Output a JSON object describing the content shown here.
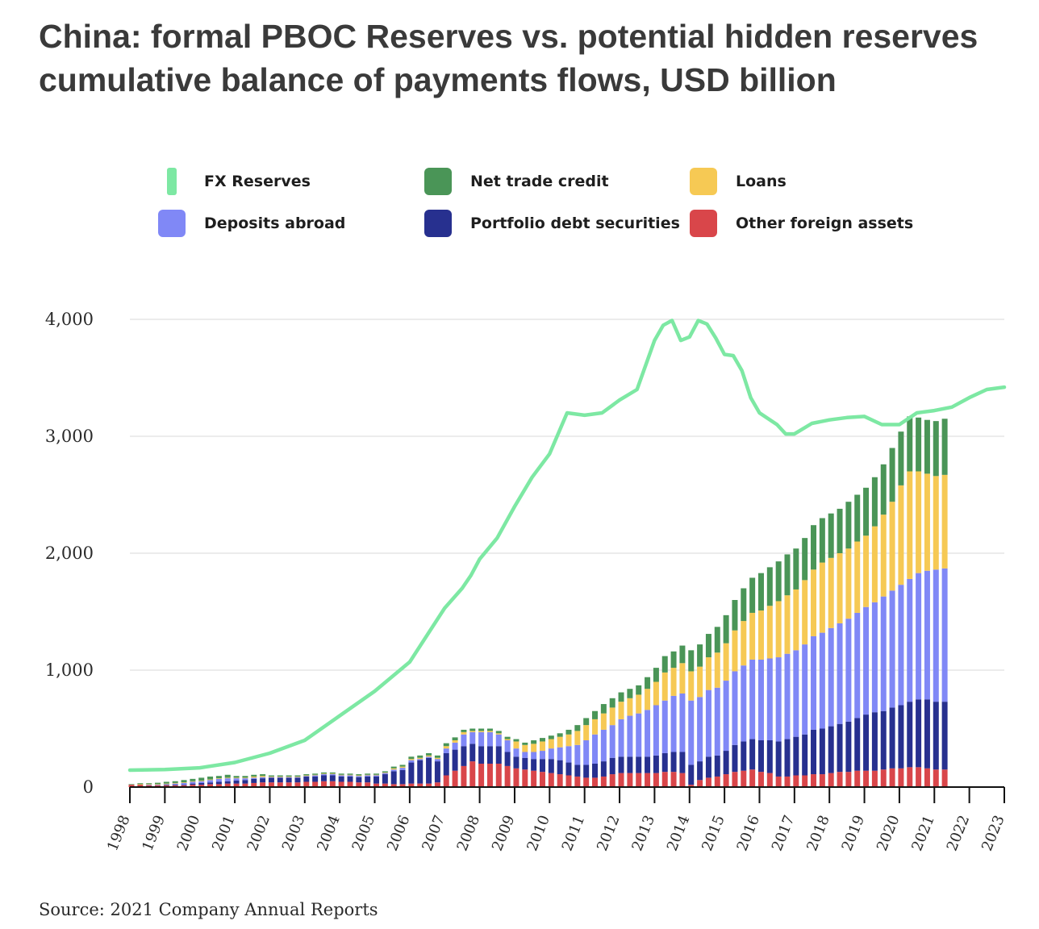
{
  "chart_data": {
    "type": "bar",
    "title": "China: formal PBOC Reserves vs. potential hidden reserves cumulative balance of payments flows, USD billion",
    "source": "Source: 2021 Company Annual Reports",
    "ylim": [
      0,
      4000
    ],
    "yticks": [
      "0",
      "1,000",
      "2,000",
      "3,000",
      "4,000"
    ],
    "ytick_values": [
      0,
      1000,
      2000,
      3000,
      4000
    ],
    "xticks": [
      "1998",
      "1999",
      "2000",
      "2001",
      "2002",
      "2003",
      "2004",
      "2005",
      "2006",
      "2007",
      "2008",
      "2009",
      "2010",
      "2011",
      "2012",
      "2013",
      "2014",
      "2015",
      "2016",
      "2017",
      "2018",
      "2019",
      "2020",
      "2021",
      "2022",
      "2023"
    ],
    "grid": true,
    "legend_position": "top",
    "line_series": {
      "name": "FX Reserves",
      "color": "#7de8a3",
      "points": [
        [
          1998.0,
          145
        ],
        [
          1999.0,
          150
        ],
        [
          2000.0,
          165
        ],
        [
          2001.0,
          210
        ],
        [
          2002.0,
          290
        ],
        [
          2003.0,
          400
        ],
        [
          2004.0,
          610
        ],
        [
          2005.0,
          820
        ],
        [
          2006.0,
          1070
        ],
        [
          2007.0,
          1530
        ],
        [
          2007.5,
          1700
        ],
        [
          2007.75,
          1810
        ],
        [
          2008.0,
          1950
        ],
        [
          2008.5,
          2130
        ],
        [
          2009.0,
          2400
        ],
        [
          2009.5,
          2650
        ],
        [
          2010.0,
          2850
        ],
        [
          2010.5,
          3200
        ],
        [
          2011.0,
          3180
        ],
        [
          2011.5,
          3200
        ],
        [
          2012.0,
          3310
        ],
        [
          2012.5,
          3400
        ],
        [
          2013.0,
          3820
        ],
        [
          2013.25,
          3950
        ],
        [
          2013.5,
          3990
        ],
        [
          2013.75,
          3820
        ],
        [
          2014.0,
          3850
        ],
        [
          2014.25,
          3990
        ],
        [
          2014.5,
          3960
        ],
        [
          2014.75,
          3840
        ],
        [
          2015.0,
          3700
        ],
        [
          2015.25,
          3690
        ],
        [
          2015.5,
          3560
        ],
        [
          2015.75,
          3330
        ],
        [
          2016.0,
          3200
        ],
        [
          2016.5,
          3100
        ],
        [
          2016.75,
          3020
        ],
        [
          2017.0,
          3020
        ],
        [
          2017.5,
          3110
        ],
        [
          2018.0,
          3140
        ],
        [
          2018.5,
          3160
        ],
        [
          2019.0,
          3170
        ],
        [
          2019.5,
          3100
        ],
        [
          2020.0,
          3100
        ],
        [
          2020.5,
          3200
        ],
        [
          2021.0,
          3220
        ],
        [
          2021.5,
          3250
        ],
        [
          2022.0,
          3330
        ],
        [
          2022.5,
          3400
        ],
        [
          2023.0,
          3420
        ]
      ]
    },
    "series": [
      {
        "name": "Other foreign assets",
        "color": "#d9464a"
      },
      {
        "name": "Portfolio debt securities",
        "color": "#27308f"
      },
      {
        "name": "Deposits abroad",
        "color": "#8088f6"
      },
      {
        "name": "Loans",
        "color": "#f6c954"
      },
      {
        "name": "Net trade credit",
        "color": "#4a9557"
      }
    ],
    "bars": {
      "start": 1998.0,
      "step": 0.25,
      "values": [
        [
          20,
          0,
          0,
          0,
          5
        ],
        [
          20,
          0,
          0,
          5,
          8
        ],
        [
          15,
          0,
          5,
          5,
          8
        ],
        [
          15,
          0,
          5,
          5,
          12
        ],
        [
          15,
          5,
          5,
          5,
          15
        ],
        [
          15,
          5,
          10,
          5,
          15
        ],
        [
          15,
          5,
          15,
          5,
          20
        ],
        [
          20,
          10,
          15,
          5,
          20
        ],
        [
          20,
          15,
          15,
          5,
          25
        ],
        [
          25,
          15,
          20,
          5,
          25
        ],
        [
          25,
          20,
          25,
          5,
          20
        ],
        [
          30,
          20,
          25,
          5,
          25
        ],
        [
          30,
          25,
          20,
          5,
          15
        ],
        [
          30,
          30,
          15,
          5,
          15
        ],
        [
          35,
          35,
          10,
          10,
          15
        ],
        [
          40,
          35,
          10,
          10,
          15
        ],
        [
          40,
          40,
          5,
          5,
          10
        ],
        [
          40,
          40,
          5,
          5,
          10
        ],
        [
          40,
          40,
          5,
          5,
          10
        ],
        [
          40,
          40,
          5,
          5,
          10
        ],
        [
          45,
          45,
          5,
          5,
          10
        ],
        [
          45,
          45,
          10,
          5,
          10
        ],
        [
          50,
          50,
          10,
          5,
          10
        ],
        [
          50,
          50,
          10,
          5,
          10
        ],
        [
          45,
          45,
          10,
          5,
          10
        ],
        [
          45,
          45,
          10,
          5,
          10
        ],
        [
          40,
          45,
          10,
          5,
          10
        ],
        [
          40,
          50,
          10,
          5,
          10
        ],
        [
          30,
          60,
          10,
          5,
          10
        ],
        [
          30,
          80,
          10,
          5,
          10
        ],
        [
          25,
          110,
          15,
          10,
          15
        ],
        [
          25,
          120,
          20,
          10,
          15
        ],
        [
          30,
          180,
          20,
          10,
          20
        ],
        [
          30,
          200,
          10,
          10,
          20
        ],
        [
          30,
          220,
          10,
          10,
          20
        ],
        [
          40,
          180,
          20,
          10,
          20
        ],
        [
          100,
          190,
          40,
          20,
          25
        ],
        [
          140,
          180,
          60,
          20,
          25
        ],
        [
          180,
          170,
          100,
          20,
          20
        ],
        [
          220,
          150,
          100,
          10,
          20
        ],
        [
          200,
          150,
          120,
          10,
          20
        ],
        [
          200,
          150,
          120,
          10,
          20
        ],
        [
          200,
          150,
          100,
          10,
          20
        ],
        [
          180,
          120,
          100,
          10,
          20
        ],
        [
          160,
          100,
          70,
          60,
          20
        ],
        [
          150,
          100,
          50,
          60,
          20
        ],
        [
          140,
          100,
          60,
          70,
          30
        ],
        [
          130,
          110,
          70,
          80,
          30
        ],
        [
          120,
          120,
          90,
          80,
          30
        ],
        [
          110,
          120,
          110,
          90,
          30
        ],
        [
          100,
          110,
          140,
          100,
          40
        ],
        [
          90,
          100,
          170,
          120,
          50
        ],
        [
          80,
          110,
          210,
          130,
          60
        ],
        [
          80,
          120,
          250,
          130,
          70
        ],
        [
          90,
          130,
          270,
          140,
          80
        ],
        [
          110,
          140,
          280,
          150,
          80
        ],
        [
          120,
          140,
          320,
          150,
          80
        ],
        [
          120,
          140,
          350,
          150,
          80
        ],
        [
          120,
          140,
          370,
          160,
          80
        ],
        [
          120,
          140,
          400,
          180,
          100
        ],
        [
          120,
          150,
          430,
          200,
          120
        ],
        [
          130,
          160,
          450,
          240,
          140
        ],
        [
          130,
          170,
          480,
          240,
          140
        ],
        [
          120,
          180,
          500,
          260,
          150
        ],
        [
          20,
          170,
          550,
          250,
          180
        ],
        [
          60,
          160,
          550,
          260,
          190
        ],
        [
          80,
          180,
          570,
          280,
          200
        ],
        [
          90,
          180,
          580,
          300,
          220
        ],
        [
          110,
          200,
          600,
          320,
          240
        ],
        [
          130,
          230,
          630,
          350,
          260
        ],
        [
          140,
          250,
          650,
          380,
          280
        ],
        [
          150,
          260,
          680,
          400,
          300
        ],
        [
          130,
          270,
          690,
          420,
          320
        ],
        [
          120,
          280,
          700,
          450,
          330
        ],
        [
          90,
          300,
          720,
          480,
          340
        ],
        [
          90,
          320,
          730,
          500,
          350
        ],
        [
          100,
          330,
          740,
          520,
          350
        ],
        [
          100,
          350,
          770,
          550,
          360
        ],
        [
          110,
          380,
          800,
          570,
          380
        ],
        [
          110,
          390,
          820,
          600,
          380
        ],
        [
          120,
          400,
          840,
          600,
          380
        ],
        [
          130,
          410,
          860,
          600,
          380
        ],
        [
          130,
          430,
          880,
          600,
          400
        ],
        [
          140,
          450,
          900,
          610,
          400
        ],
        [
          140,
          480,
          920,
          610,
          410
        ],
        [
          140,
          500,
          940,
          650,
          420
        ],
        [
          150,
          500,
          980,
          700,
          430
        ],
        [
          160,
          520,
          1000,
          760,
          460
        ],
        [
          160,
          540,
          1030,
          850,
          460
        ],
        [
          170,
          560,
          1050,
          920,
          470
        ],
        [
          170,
          580,
          1080,
          870,
          460
        ],
        [
          160,
          590,
          1100,
          830,
          460
        ],
        [
          150,
          580,
          1130,
          800,
          470
        ],
        [
          150,
          580,
          1140,
          800,
          480
        ]
      ]
    }
  }
}
